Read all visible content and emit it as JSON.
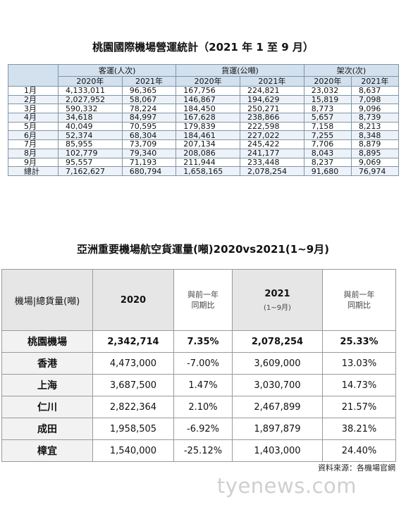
{
  "table1": {
    "title": "桃園國際機場營運統計（2021 年 1 至 9 月）",
    "group_headers": [
      "客運(人次)",
      "貨運(公噸)",
      "架次(次)"
    ],
    "year_headers": [
      "2020年",
      "2021年",
      "2020年",
      "2021年",
      "2020年",
      "2021年"
    ],
    "rows": [
      {
        "label": "1月",
        "values": [
          "4,133,011",
          "96,365",
          "167,756",
          "224,821",
          "23,032",
          "8,637"
        ]
      },
      {
        "label": "2月",
        "values": [
          "2,027,952",
          "58,067",
          "146,867",
          "194,629",
          "15,819",
          "7,098"
        ]
      },
      {
        "label": "3月",
        "values": [
          "590,332",
          "78,224",
          "184,450",
          "250,271",
          "8,773",
          "9,096"
        ]
      },
      {
        "label": "4月",
        "values": [
          "34,618",
          "84,997",
          "167,628",
          "238,866",
          "5,657",
          "8,739"
        ]
      },
      {
        "label": "5月",
        "values": [
          "40,049",
          "70,595",
          "179,839",
          "222,598",
          "7,158",
          "8,213"
        ]
      },
      {
        "label": "6月",
        "values": [
          "52,374",
          "68,304",
          "184,461",
          "227,022",
          "7,255",
          "8,348"
        ]
      },
      {
        "label": "7月",
        "values": [
          "85,955",
          "73,709",
          "207,134",
          "245,422",
          "7,706",
          "8,879"
        ]
      },
      {
        "label": "8月",
        "values": [
          "102,779",
          "79,340",
          "208,086",
          "241,177",
          "8,043",
          "8,895"
        ]
      },
      {
        "label": "9月",
        "values": [
          "95,557",
          "71,193",
          "211,944",
          "233,448",
          "8,237",
          "9,069"
        ]
      },
      {
        "label": "總計",
        "values": [
          "7,162,627",
          "680,794",
          "1,658,165",
          "2,078,254",
          "91,680",
          "76,974"
        ]
      }
    ]
  },
  "table2": {
    "title": "亞洲重要機場航空貨運量(噸)2020vs2021(1~9月)",
    "header": {
      "airport": "機場|總貨量(噸)",
      "y2020": "2020",
      "cmp1_line1": "與前一年",
      "cmp1_line2": "同期比",
      "y2021": "2021",
      "y2021_sub": "(1~9月)",
      "cmp2_line1": "與前一年",
      "cmp2_line2": "同期比"
    },
    "rows": [
      {
        "airport": "桃園機場",
        "v2020": "2,342,714",
        "c2020": "7.35%",
        "v2021": "2,078,254",
        "c2021": "25.33%"
      },
      {
        "airport": "香港",
        "v2020": "4,473,000",
        "c2020": "-7.00%",
        "v2021": "3,609,000",
        "c2021": "13.03%"
      },
      {
        "airport": "上海",
        "v2020": "3,687,500",
        "c2020": "1.47%",
        "v2021": "3,030,700",
        "c2021": "14.73%"
      },
      {
        "airport": "仁川",
        "v2020": "2,822,364",
        "c2020": "2.10%",
        "v2021": "2,467,899",
        "c2021": "21.57%"
      },
      {
        "airport": "成田",
        "v2020": "1,958,505",
        "c2020": "-6.92%",
        "v2021": "1,897,879",
        "c2021": "38.21%"
      },
      {
        "airport": "樟宜",
        "v2020": "1,540,000",
        "c2020": "-25.12%",
        "v2021": "1,403,000",
        "c2021": "24.40%"
      }
    ]
  },
  "source": "資料來源：各機場官網",
  "watermark": "tyenews.com"
}
